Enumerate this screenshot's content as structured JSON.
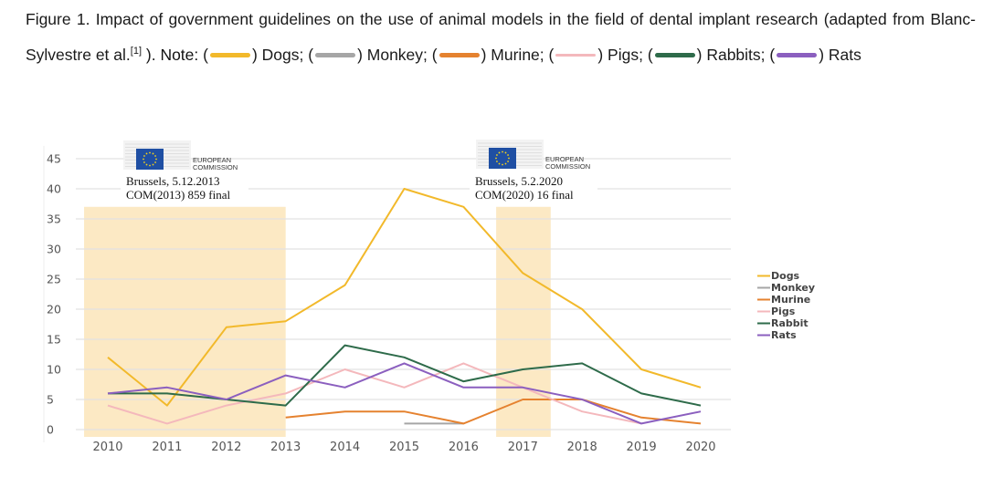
{
  "caption": {
    "figure_label": "Figure 1",
    "text_before_ref": ". Impact of government guidelines on the use of animal models in the field of dental implant research (adapted from Blanc-Sylvestre et al.",
    "ref": "[1]",
    "text_after_ref": " ). ",
    "note_label": "Note:",
    "legend_items": [
      {
        "label": "Dogs",
        "color": "#F2B92B",
        "sep": ";"
      },
      {
        "label": "Monkey",
        "color": "#A6A6A6",
        "sep": ";"
      },
      {
        "label": "Murine",
        "color": "#E5822F",
        "sep": ";"
      },
      {
        "label": "Pigs",
        "color": "#F4B8BC",
        "sep": ";"
      },
      {
        "label": "Rabbits",
        "color": "#2E6B4A",
        "sep": ";"
      },
      {
        "label": "Rats",
        "color": "#8B5FBF",
        "sep": ""
      }
    ]
  },
  "annotations": [
    {
      "org_line1": "EUROPEAN",
      "org_line2": "COMMISSION",
      "line1": "Brussels, 5.12.2013",
      "line2": "COM(2013) 859 final"
    },
    {
      "org_line1": "EUROPEAN",
      "org_line2": "COMMISSION",
      "line1": "Brussels, 5.2.2020",
      "line2": "COM(2020) 16 final"
    }
  ],
  "chart_data": {
    "type": "line",
    "title": "",
    "xlabel": "",
    "ylabel": "",
    "x": [
      2010,
      2011,
      2012,
      2013,
      2014,
      2015,
      2016,
      2017,
      2018,
      2019,
      2020
    ],
    "xticks": [
      "2010",
      "2011",
      "2012",
      "2013",
      "2014",
      "2015",
      "2016",
      "2017",
      "2018",
      "2019",
      "2020"
    ],
    "yticks": [
      0,
      5,
      10,
      15,
      20,
      25,
      30,
      35,
      40,
      45
    ],
    "ylim": [
      0,
      45
    ],
    "grid": true,
    "legend_position": "right",
    "shaded_regions": [
      {
        "x_start": 2009.6,
        "x_end": 2013.0,
        "y_top": 37,
        "color": "#FCE9C4"
      },
      {
        "x_start": 2016.55,
        "x_end": 2017.47,
        "y_top": 37,
        "color": "#FCE9C4"
      }
    ],
    "series": [
      {
        "name": "Dogs",
        "color": "#F2B92B",
        "values": [
          12,
          4,
          17,
          18,
          24,
          40,
          37,
          26,
          20,
          10,
          7
        ]
      },
      {
        "name": "Monkey",
        "color": "#A6A6A6",
        "values": [
          null,
          null,
          null,
          null,
          null,
          1,
          1,
          null,
          null,
          null,
          null
        ]
      },
      {
        "name": "Murine",
        "color": "#E5822F",
        "values": [
          null,
          null,
          null,
          2,
          3,
          3,
          1,
          5,
          5,
          2,
          1
        ]
      },
      {
        "name": "Pigs",
        "color": "#F4B8BC",
        "values": [
          4,
          1,
          4,
          6,
          10,
          7,
          11,
          7,
          3,
          1,
          null
        ]
      },
      {
        "name": "Rabbit",
        "color": "#2E6B4A",
        "values": [
          6,
          6,
          5,
          4,
          14,
          12,
          8,
          10,
          11,
          6,
          4
        ]
      },
      {
        "name": "Rats",
        "color": "#8B5FBF",
        "values": [
          6,
          7,
          5,
          9,
          7,
          11,
          7,
          7,
          5,
          1,
          3
        ]
      }
    ]
  }
}
